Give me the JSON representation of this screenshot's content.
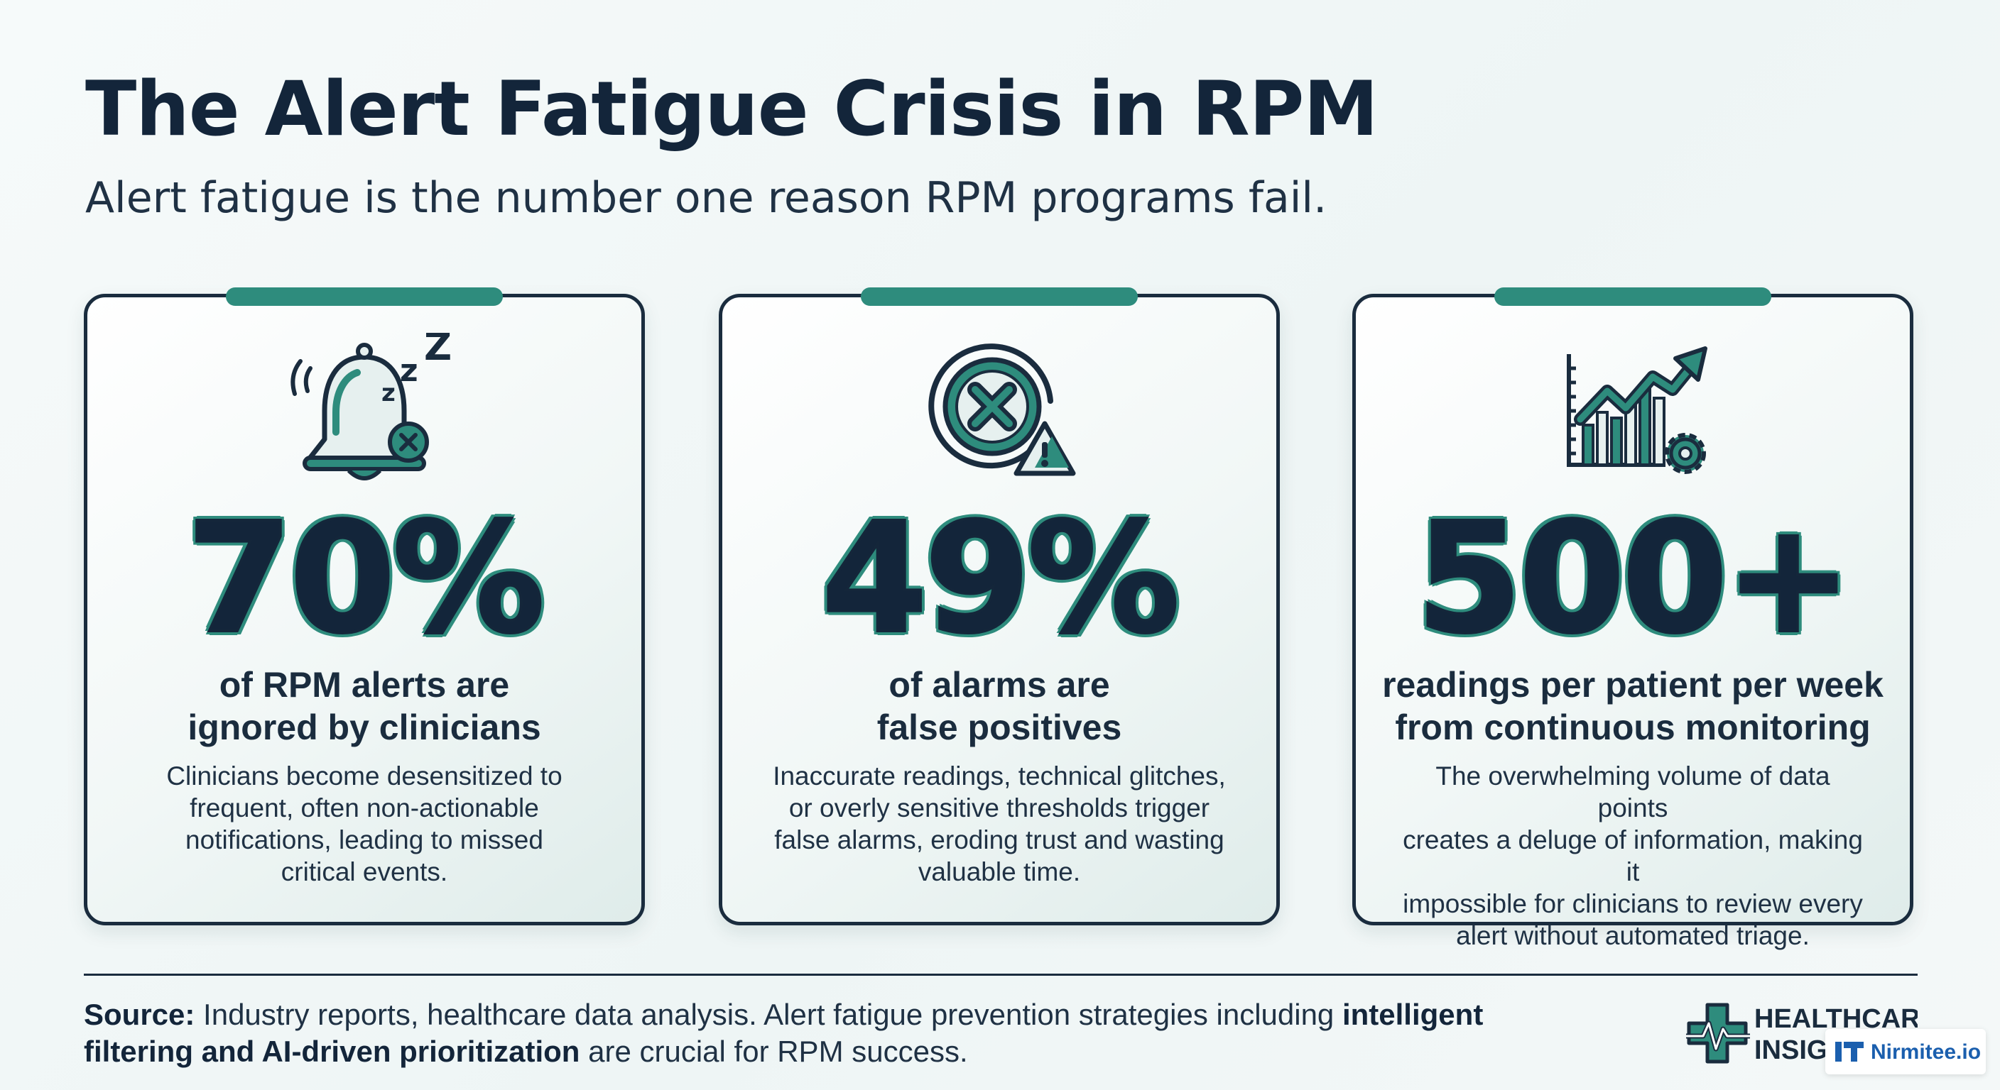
{
  "header": {
    "title": "The Alert Fatigue Crisis in RPM",
    "subtitle": "Alert fatigue is the number one reason RPM programs fail."
  },
  "cards": [
    {
      "icon": "sleeping-bell-icon",
      "stat": "70%",
      "headline_line1": "of RPM alerts are",
      "headline_line2": "ignored by clinicians",
      "body": [
        "Clinicians become desensitized to",
        "frequent, often non-actionable",
        "notifications, leading to missed",
        "critical events."
      ]
    },
    {
      "icon": "false-alarm-icon",
      "stat": "49%",
      "headline_line1": "of alarms are",
      "headline_line2": "false positives",
      "body": [
        "Inaccurate readings, technical glitches,",
        "or overly sensitive thresholds trigger",
        "false alarms, eroding trust and wasting",
        "valuable time."
      ]
    },
    {
      "icon": "rising-chart-gear-icon",
      "stat": "500+",
      "headline_line1": "readings per patient per week",
      "headline_line2": "from continuous monitoring",
      "body": [
        "The overwhelming volume of data points",
        "creates a deluge of information, making it",
        "impossible for clinicians to review every",
        "alert without automated triage."
      ]
    }
  ],
  "footer": {
    "source_label": "Source:",
    "source_text": " Industry reports, healthcare data analysis. Alert fatigue prevention strategies including ",
    "source_bold": "intelligent filtering and AI-driven prioritization",
    "source_end": " are crucial for RPM success.",
    "brand_line1": "HEALTHCARE",
    "brand_line2": "INSIGHTS",
    "badge_text": "Nirmitee.io"
  },
  "colors": {
    "accent": "#2e8c7d",
    "dark": "#13253a",
    "background": "#f1f7f7",
    "badge_blue": "#1b5fae"
  }
}
